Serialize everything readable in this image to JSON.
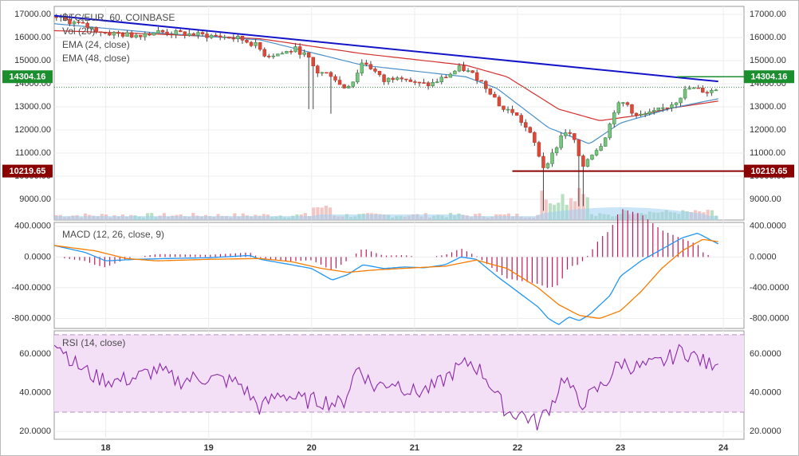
{
  "chart_data": [
    {
      "type": "candlestick",
      "title": "BTC/EUR, 60, COINBASE",
      "indicators": [
        "Vol (20)",
        "EMA (24, close)",
        "EMA (48, close)"
      ],
      "y_ticks": [
        9000,
        10000,
        11000,
        12000,
        13000,
        14000,
        15000,
        16000,
        17000
      ],
      "y_tick_labels": [
        "9000.00",
        "10000.00",
        "11000.00",
        "12000.00",
        "13000.00",
        "14000.00",
        "15000.00",
        "16000.00",
        "17000.00"
      ],
      "ylim": [
        8100,
        17350
      ],
      "x_ticks": [
        18,
        19,
        20,
        21,
        22,
        23,
        24
      ],
      "x_tick_labels": [
        "18",
        "19",
        "20",
        "21",
        "22",
        "23",
        "24"
      ],
      "xlim": [
        17.5,
        24.2
      ],
      "price_markers": [
        {
          "label": "14304.16",
          "value": 14304.16,
          "color": "#1b8f2e"
        },
        {
          "label": "10219.65",
          "value": 10219.65,
          "color": "#8b0000"
        }
      ],
      "trendline": {
        "start": [
          17.5,
          16950
        ],
        "end": [
          23.95,
          14100
        ],
        "color": "#1414c8"
      },
      "support_line": {
        "start": [
          21.95,
          10219.65
        ],
        "end": [
          24.2,
          10219.65
        ],
        "color": "#8b0000"
      },
      "resistance_line": {
        "start": [
          23.55,
          14304.16
        ],
        "end": [
          24.2,
          14304.16
        ],
        "color": "#1b8f2e"
      },
      "last_price_line": 13850,
      "price_anchors": [
        [
          17.5,
          16900
        ],
        [
          17.8,
          16500
        ],
        [
          18.0,
          16200
        ],
        [
          18.25,
          16100
        ],
        [
          18.5,
          16250
        ],
        [
          18.8,
          16150
        ],
        [
          19.1,
          16050
        ],
        [
          19.3,
          15950
        ],
        [
          19.45,
          15700
        ],
        [
          19.55,
          15250
        ],
        [
          19.7,
          15300
        ],
        [
          19.85,
          15500
        ],
        [
          19.95,
          15200
        ],
        [
          20.05,
          14500
        ],
        [
          20.2,
          14400
        ],
        [
          20.3,
          13800
        ],
        [
          20.4,
          14100
        ],
        [
          20.5,
          15000
        ],
        [
          20.6,
          14600
        ],
        [
          20.7,
          14100
        ],
        [
          20.85,
          14400
        ],
        [
          21.0,
          14000
        ],
        [
          21.15,
          13950
        ],
        [
          21.3,
          14300
        ],
        [
          21.45,
          14700
        ],
        [
          21.6,
          14300
        ],
        [
          21.75,
          13600
        ],
        [
          21.85,
          12900
        ],
        [
          21.95,
          12800
        ],
        [
          22.05,
          12300
        ],
        [
          22.15,
          11600
        ],
        [
          22.25,
          10400
        ],
        [
          22.35,
          11000
        ],
        [
          22.45,
          12000
        ],
        [
          22.55,
          11600
        ],
        [
          22.62,
          10300
        ],
        [
          22.7,
          10900
        ],
        [
          22.8,
          11300
        ],
        [
          22.88,
          12000
        ],
        [
          22.95,
          13000
        ],
        [
          23.05,
          13200
        ],
        [
          23.15,
          12600
        ],
        [
          23.3,
          12700
        ],
        [
          23.45,
          13000
        ],
        [
          23.55,
          13300
        ],
        [
          23.65,
          13800
        ],
        [
          23.75,
          13750
        ],
        [
          23.85,
          13650
        ],
        [
          23.95,
          13800
        ]
      ],
      "ema24_anchors": [
        [
          17.5,
          16600
        ],
        [
          18.5,
          16200
        ],
        [
          19.5,
          15900
        ],
        [
          20.5,
          14800
        ],
        [
          21.5,
          14300
        ],
        [
          21.8,
          13800
        ],
        [
          22.3,
          12100
        ],
        [
          22.7,
          11400
        ],
        [
          23.0,
          12300
        ],
        [
          23.5,
          12950
        ],
        [
          23.95,
          13350
        ]
      ],
      "ema48_anchors": [
        [
          17.5,
          16300
        ],
        [
          18.5,
          16150
        ],
        [
          19.5,
          15950
        ],
        [
          20.5,
          15300
        ],
        [
          21.5,
          14800
        ],
        [
          21.9,
          14300
        ],
        [
          22.4,
          12900
        ],
        [
          22.8,
          12400
        ],
        [
          23.2,
          12650
        ],
        [
          23.5,
          12950
        ],
        [
          23.95,
          13250
        ]
      ],
      "volume_bars": 160
    },
    {
      "type": "line",
      "title": "MACD (12, 26, close, 9)",
      "y_ticks": [
        400,
        0,
        -400,
        -800
      ],
      "y_tick_labels": [
        "400.0000",
        "0.0000",
        "-400.0000",
        "-800.0000"
      ],
      "ylim": [
        -930,
        450
      ],
      "series": [
        {
          "color": "#2196f3",
          "anchors": [
            [
              17.5,
              150
            ],
            [
              17.8,
              60
            ],
            [
              18.0,
              -50
            ],
            [
              18.3,
              -30
            ],
            [
              18.6,
              -20
            ],
            [
              19.0,
              -10
            ],
            [
              19.4,
              20
            ],
            [
              19.5,
              -30
            ],
            [
              19.8,
              -100
            ],
            [
              20.0,
              -150
            ],
            [
              20.2,
              -300
            ],
            [
              20.35,
              -230
            ],
            [
              20.5,
              -100
            ],
            [
              20.7,
              -150
            ],
            [
              20.9,
              -130
            ],
            [
              21.1,
              -140
            ],
            [
              21.3,
              -100
            ],
            [
              21.45,
              0
            ],
            [
              21.6,
              -30
            ],
            [
              21.8,
              -250
            ],
            [
              22.0,
              -450
            ],
            [
              22.2,
              -650
            ],
            [
              22.3,
              -800
            ],
            [
              22.4,
              -880
            ],
            [
              22.5,
              -780
            ],
            [
              22.6,
              -830
            ],
            [
              22.7,
              -750
            ],
            [
              22.9,
              -500
            ],
            [
              23.0,
              -250
            ],
            [
              23.2,
              -50
            ],
            [
              23.4,
              100
            ],
            [
              23.6,
              250
            ],
            [
              23.75,
              310
            ],
            [
              23.95,
              170
            ]
          ]
        },
        {
          "color": "#f57c00",
          "anchors": [
            [
              17.5,
              150
            ],
            [
              17.9,
              80
            ],
            [
              18.2,
              -20
            ],
            [
              18.5,
              -50
            ],
            [
              19.0,
              -30
            ],
            [
              19.5,
              -20
            ],
            [
              19.8,
              -60
            ],
            [
              20.1,
              -150
            ],
            [
              20.35,
              -200
            ],
            [
              20.6,
              -170
            ],
            [
              21.0,
              -140
            ],
            [
              21.3,
              -120
            ],
            [
              21.6,
              -40
            ],
            [
              21.9,
              -150
            ],
            [
              22.2,
              -400
            ],
            [
              22.4,
              -620
            ],
            [
              22.6,
              -760
            ],
            [
              22.8,
              -800
            ],
            [
              23.0,
              -700
            ],
            [
              23.2,
              -450
            ],
            [
              23.4,
              -150
            ],
            [
              23.6,
              80
            ],
            [
              23.8,
              230
            ],
            [
              23.95,
              200
            ]
          ]
        }
      ]
    },
    {
      "type": "line",
      "title": "RSI (14, close)",
      "y_ticks": [
        60,
        40,
        20
      ],
      "y_tick_labels": [
        "60.0000",
        "40.0000",
        "20.0000"
      ],
      "ylim": [
        16,
        72
      ],
      "band": [
        30,
        70
      ],
      "series": [
        {
          "color": "#8a2aa7",
          "anchors": [
            [
              17.5,
              68
            ],
            [
              17.7,
              55
            ],
            [
              17.9,
              48
            ],
            [
              18.1,
              46
            ],
            [
              18.3,
              48
            ],
            [
              18.5,
              52
            ],
            [
              18.7,
              46
            ],
            [
              18.9,
              48
            ],
            [
              19.1,
              47
            ],
            [
              19.3,
              45
            ],
            [
              19.5,
              32
            ],
            [
              19.7,
              40
            ],
            [
              19.9,
              36
            ],
            [
              20.1,
              36
            ],
            [
              20.3,
              34
            ],
            [
              20.45,
              54
            ],
            [
              20.6,
              43
            ],
            [
              20.8,
              46
            ],
            [
              21.0,
              40
            ],
            [
              21.2,
              43
            ],
            [
              21.4,
              52
            ],
            [
              21.55,
              56
            ],
            [
              21.7,
              48
            ],
            [
              21.8,
              38
            ],
            [
              21.9,
              30
            ],
            [
              22.05,
              29
            ],
            [
              22.2,
              24
            ],
            [
              22.35,
              36
            ],
            [
              22.45,
              49
            ],
            [
              22.6,
              34
            ],
            [
              22.7,
              38
            ],
            [
              22.85,
              45
            ],
            [
              23.0,
              56
            ],
            [
              23.15,
              53
            ],
            [
              23.3,
              54
            ],
            [
              23.45,
              57
            ],
            [
              23.6,
              62
            ],
            [
              23.75,
              58
            ],
            [
              23.85,
              54
            ],
            [
              23.95,
              58
            ]
          ]
        }
      ]
    }
  ]
}
